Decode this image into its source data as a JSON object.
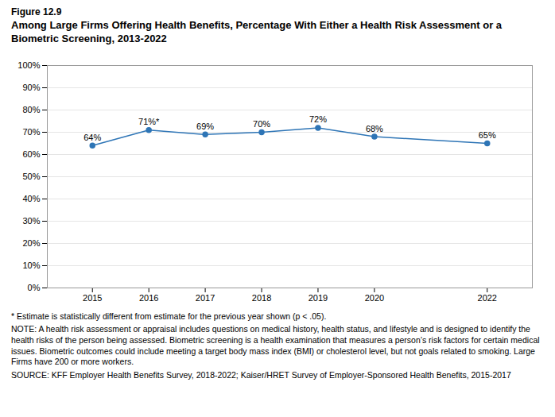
{
  "chart_data": {
    "type": "line",
    "figure_label": "Figure 12.9",
    "title": "Among Large Firms Offering Health Benefits, Percentage With Either a Health Risk Assessment or a Biometric Screening, 2013-2022",
    "x": [
      2015,
      2016,
      2017,
      2018,
      2019,
      2020,
      2022
    ],
    "values": [
      0.64,
      0.71,
      0.69,
      0.7,
      0.72,
      0.68,
      0.65
    ],
    "value_labels": [
      "64%",
      "71%*",
      "69%",
      "70%",
      "72%",
      "68%",
      "65%"
    ],
    "data_labels": true,
    "color": "#2E75B6",
    "marker": "circle",
    "xlim": [
      2014.2,
      2022.8
    ],
    "xticks": [
      2015,
      2016,
      2017,
      2018,
      2019,
      2020,
      2022
    ],
    "ylim": [
      0,
      1.0
    ],
    "yticks": [
      {
        "value": 0.0,
        "label": "0%"
      },
      {
        "value": 0.1,
        "label": "10%"
      },
      {
        "value": 0.2,
        "label": "20%"
      },
      {
        "value": 0.3,
        "label": "30%"
      },
      {
        "value": 0.4,
        "label": "40%"
      },
      {
        "value": 0.5,
        "label": "50%"
      },
      {
        "value": 0.6,
        "label": "60%"
      },
      {
        "value": 0.7,
        "label": "70%"
      },
      {
        "value": 0.8,
        "label": "80%"
      },
      {
        "value": 0.9,
        "label": "90%"
      },
      {
        "value": 1.0,
        "label": "100%"
      }
    ],
    "grid": true,
    "notes": [
      "* Estimate is statistically different from estimate for the previous year shown (p < .05).",
      "NOTE: A health risk assessment or appraisal includes questions on medical history, health status, and lifestyle and is designed to identify the health risks of the person being assessed.  Biometric screening is a health examination that measures a person’s risk factors for certain medical issues. Biometric outcomes could include meeting a target body mass index (BMI) or cholesterol level, but not goals related to smoking.  Large Firms have 200 or more workers.",
      "SOURCE: KFF Employer Health Benefits Survey, 2018-2022; Kaiser/HRET Survey of Employer-Sponsored Health Benefits, 2015-2017"
    ]
  }
}
